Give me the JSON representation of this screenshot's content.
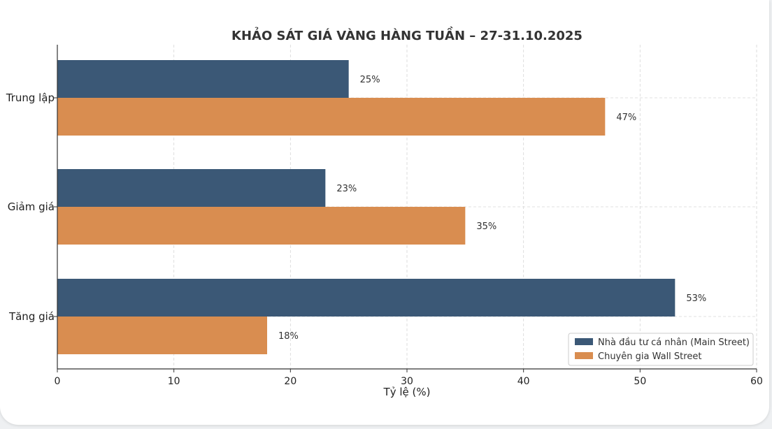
{
  "chart_data": {
    "type": "bar",
    "orientation": "horizontal",
    "title": "KHẢO SÁT GIÁ VÀNG HÀNG TUẦN – 27-31.10.2025",
    "xlabel": "Tỷ lệ (%)",
    "ylabel": "",
    "xlim": [
      0,
      60
    ],
    "xticks": [
      "0",
      "10",
      "20",
      "30",
      "40",
      "50",
      "60"
    ],
    "grid": true,
    "legend_position": "bottom-right",
    "categories": [
      "Trung lập",
      "Giảm giá",
      "Tăng giá"
    ],
    "series": [
      {
        "name": "Nhà đầu tư cá nhân (Main Street)",
        "color": "#3b5876",
        "values": [
          25,
          23,
          53
        ],
        "labels": [
          "25%",
          "23%",
          "53%"
        ]
      },
      {
        "name": "Chuyên gia Wall Street",
        "color": "#d98d50",
        "values": [
          47,
          35,
          18
        ],
        "labels": [
          "47%",
          "35%",
          "18%"
        ]
      }
    ]
  }
}
